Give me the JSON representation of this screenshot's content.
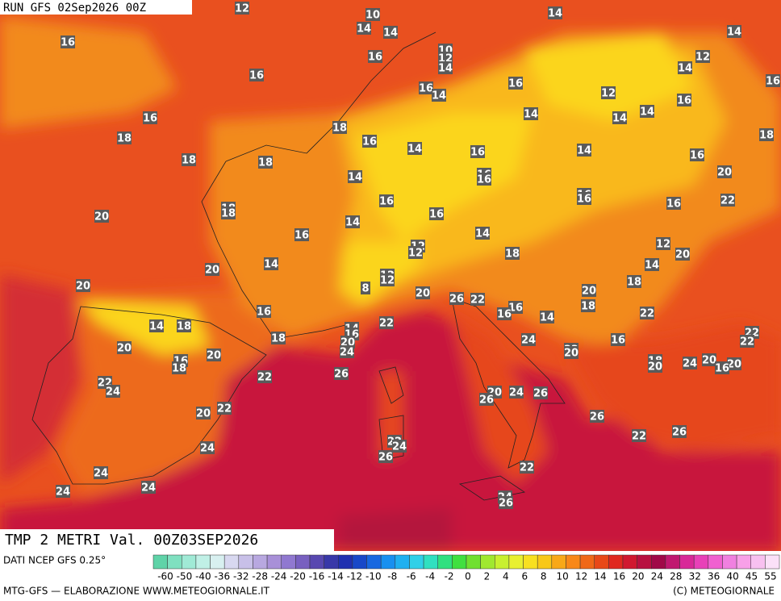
{
  "header": "RUN GFS 02Sep2026 00Z",
  "map": {
    "labels": [
      12,
      10,
      14,
      14,
      10,
      12,
      14,
      14,
      14,
      16,
      16,
      12,
      14,
      16,
      16,
      16,
      16,
      14,
      12,
      16,
      16,
      14,
      14,
      14,
      18,
      18,
      16,
      14,
      16,
      14,
      18,
      18,
      18,
      16,
      20,
      14,
      16,
      16,
      16,
      16,
      16,
      22,
      16,
      18,
      18,
      20,
      16,
      14,
      16,
      14,
      12,
      12,
      12,
      18,
      20,
      14,
      14,
      20,
      12,
      12,
      18,
      20,
      8,
      20,
      20,
      26,
      22,
      18,
      16,
      16,
      16,
      22,
      14,
      14,
      18,
      22,
      14,
      16,
      22,
      18,
      24,
      16,
      22,
      20,
      24,
      22,
      20,
      20,
      20,
      16,
      18,
      18,
      20,
      24,
      20,
      20,
      16,
      26,
      22,
      22,
      24,
      20,
      24,
      26,
      26,
      22,
      20,
      26,
      22,
      26,
      22,
      24,
      24,
      26,
      22,
      24,
      24,
      24,
      24,
      26
    ]
  },
  "footer": {
    "title": "TMP 2 METRI Val. 00Z03SEP2026",
    "source": "DATI NCEP GFS 0.25°",
    "credit": "MTG-GFS — ELABORAZIONE WWW.METEOGIORNALE.IT",
    "copyright": "(C) METEOGIORNALE",
    "scale": [
      -60,
      -50,
      -40,
      -36,
      -32,
      -28,
      -24,
      -20,
      -16,
      -14,
      -12,
      -10,
      -8,
      -6,
      -4,
      -2,
      0,
      2,
      4,
      6,
      8,
      10,
      12,
      14,
      16,
      20,
      24,
      28,
      32,
      36,
      40,
      45,
      55
    ]
  }
}
